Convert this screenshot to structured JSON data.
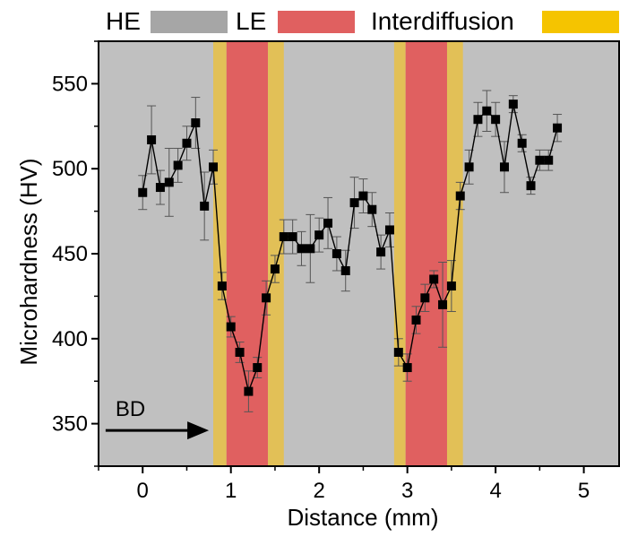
{
  "chart_data": {
    "type": "scatter",
    "title": "",
    "xlabel": "Distance (mm)",
    "ylabel": "Microhardness (HV)",
    "xlim": [
      -0.5,
      5.4
    ],
    "ylim": [
      325,
      575
    ],
    "xticks": [
      0,
      1,
      2,
      3,
      4,
      5
    ],
    "yticks": [
      350,
      400,
      450,
      500,
      550
    ],
    "grid": false,
    "legend": {
      "placement": "top",
      "entries": [
        {
          "label": "HE",
          "color": "#a6a6a6"
        },
        {
          "label": "LE",
          "color": "#e06060"
        },
        {
          "label": "Interdiffusion",
          "color": "#f5c400"
        }
      ]
    },
    "regions": [
      {
        "type": "HE",
        "x": [
          -0.5,
          5.4
        ],
        "color": "#c0c0c0"
      },
      {
        "type": "Interdiffusion",
        "x": [
          0.8,
          0.95
        ],
        "color": "#e2c057"
      },
      {
        "type": "LE",
        "x": [
          0.95,
          1.42
        ],
        "color": "#e06060"
      },
      {
        "type": "Interdiffusion",
        "x": [
          1.42,
          1.6
        ],
        "color": "#e2c057"
      },
      {
        "type": "Interdiffusion",
        "x": [
          2.85,
          2.98
        ],
        "color": "#e2c057"
      },
      {
        "type": "LE",
        "x": [
          2.98,
          3.45
        ],
        "color": "#e06060"
      },
      {
        "type": "Interdiffusion",
        "x": [
          3.45,
          3.63
        ],
        "color": "#e2c057"
      }
    ],
    "annotation": {
      "text": "BD",
      "arrow_from": [
        -0.42,
        346
      ],
      "arrow_to": [
        0.75,
        346
      ]
    },
    "series": [
      {
        "marker": "square",
        "color": "#000000",
        "x": [
          0,
          0.1,
          0.2,
          0.3,
          0.4,
          0.5,
          0.6,
          0.7,
          0.8,
          0.9,
          1.0,
          1.1,
          1.2,
          1.3,
          1.4,
          1.5,
          1.6,
          1.7,
          1.8,
          1.9,
          2.0,
          2.1,
          2.2,
          2.3,
          2.4,
          2.5,
          2.6,
          2.7,
          2.8,
          2.9,
          3.0,
          3.1,
          3.2,
          3.3,
          3.4,
          3.5,
          3.6,
          3.7,
          3.8,
          3.9,
          4.0,
          4.1,
          4.2,
          4.3,
          4.4,
          4.5,
          4.6,
          4.7
        ],
        "y": [
          486,
          517,
          489,
          492,
          502,
          515,
          527,
          478,
          501,
          431,
          407,
          392,
          369,
          383,
          424,
          441,
          460,
          460,
          453,
          453,
          461,
          468,
          450,
          440,
          480,
          484,
          476,
          451,
          464,
          392,
          383,
          411,
          424,
          435,
          420,
          431,
          484,
          501,
          529,
          534,
          529,
          501,
          538,
          515,
          490,
          505,
          505,
          524
        ],
        "error": [
          10,
          20,
          10,
          20,
          10,
          10,
          15,
          20,
          10,
          8,
          6,
          6,
          12,
          6,
          10,
          8,
          10,
          10,
          10,
          20,
          10,
          15,
          10,
          12,
          15,
          10,
          10,
          10,
          10,
          8,
          8,
          8,
          8,
          5,
          25,
          15,
          8,
          10,
          10,
          12,
          10,
          15,
          5,
          5,
          5,
          6,
          6,
          8
        ]
      }
    ]
  }
}
